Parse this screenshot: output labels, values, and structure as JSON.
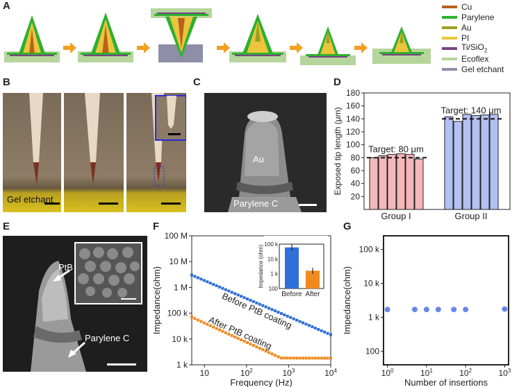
{
  "panels": {
    "A": "A",
    "B": "B",
    "C": "C",
    "D": "D",
    "E": "E",
    "F": "F",
    "G": "G"
  },
  "legend_a": [
    {
      "label": "Cu",
      "color": "#b8621d"
    },
    {
      "label": "Parylene",
      "color": "#2fb02f"
    },
    {
      "label": "Au",
      "color": "#9aa020"
    },
    {
      "label": "PI",
      "color": "#ecc53c"
    },
    {
      "label": "Ti/SiO",
      "sub": "2",
      "color": "#7a3f86"
    },
    {
      "label": "Ecoflex",
      "color": "#b5d59c"
    },
    {
      "label": "Gel etchant",
      "color": "#8e8ea8"
    }
  ],
  "panel_b": {
    "gel_label": "Gel etchant"
  },
  "panel_c": {
    "au_label": "Au",
    "parylene_label": "Parylene C"
  },
  "panel_e": {
    "ptb_label": "PtB",
    "parylene_label": "Parylene C"
  },
  "chart_d": {
    "type": "bar",
    "ylabel": "Exposed tip length (μm)",
    "yticks": [
      20,
      40,
      60,
      80,
      100,
      120,
      140,
      160,
      180
    ],
    "ylim": [
      0,
      180
    ],
    "groups": [
      {
        "name": "Group I",
        "values": [
          80,
          83,
          85,
          86,
          85,
          78
        ],
        "target": 80,
        "target_label": "Target: 80 μm",
        "color": "#f4b8b8"
      },
      {
        "name": "Group II",
        "values": [
          143,
          136,
          147,
          145,
          146,
          147
        ],
        "target": 140,
        "target_label": "Target: 140 μm",
        "color": "#b3c0f2"
      }
    ]
  },
  "chart_f": {
    "type": "scatter",
    "xlabel": "Frequency (Hz)",
    "ylabel": "Impedance(ohm)",
    "xlim": [
      5,
      10000
    ],
    "ylim": [
      1000,
      100000000
    ],
    "yticks": [
      "1 k",
      "10 k",
      "100 k",
      "1 M",
      "10 M",
      "100 M"
    ],
    "xticks": [
      "10",
      "10",
      "10",
      "10"
    ],
    "xtick_exp": [
      "",
      "2",
      "3",
      "4"
    ],
    "series": [
      {
        "name": "Before PtB coating",
        "color": "#2f6fd8",
        "start": 3000000,
        "slope": -0.7,
        "floor": 0
      },
      {
        "name": "After PtB coating",
        "color": "#f08a1e",
        "start": 70000,
        "slope": -0.75,
        "floor": 1800
      }
    ],
    "inset": {
      "ylabel": "Impedance (ohm)",
      "yticks": [
        "100",
        "1 k",
        "10 k",
        "100 k"
      ],
      "categories": [
        "Before",
        "After"
      ],
      "values": [
        60000,
        1600
      ],
      "colors": [
        "#2f6fd8",
        "#f08a1e"
      ]
    }
  },
  "chart_g": {
    "type": "scatter",
    "xlabel": "Number of insertions",
    "ylabel": "Impedance(ohm)",
    "yticks": [
      "100",
      "1 k",
      "10 k",
      "100 k"
    ],
    "xticks": [
      "10",
      "10",
      "10",
      "10"
    ],
    "xtick_exp": [
      "0",
      "1",
      "2",
      "3"
    ],
    "x": [
      1,
      5,
      10,
      20,
      50,
      100,
      1000
    ],
    "y": [
      1700,
      1700,
      1700,
      1700,
      1700,
      1700,
      1750
    ],
    "color": "#6a86ea"
  }
}
